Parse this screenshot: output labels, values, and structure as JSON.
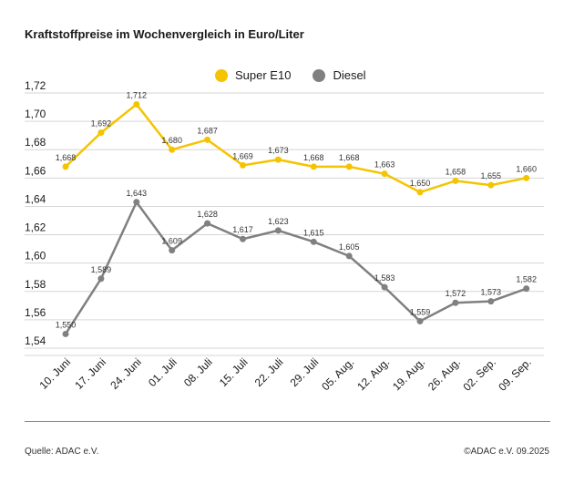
{
  "title": "Kraftstoffpreise im Wochenvergleich in Euro/Liter",
  "footer": {
    "source": "Quelle: ADAC e.V.",
    "copyright": "©ADAC e.V. 09.2025"
  },
  "colors": {
    "super_e10": "#f5c400",
    "diesel": "#808080",
    "grid": "#d6d6d6"
  },
  "chart_data": {
    "type": "line",
    "title": "Kraftstoffpreise im Wochenvergleich in Euro/Liter",
    "categories": [
      "10. Juni",
      "17. Juni",
      "24. Juni",
      "01. Juli",
      "08. Juli",
      "15. Juli",
      "22. Juli",
      "29. Juli",
      "05. Aug.",
      "12. Aug.",
      "19. Aug.",
      "26. Aug.",
      "02. Sep.",
      "09. Sep."
    ],
    "series": [
      {
        "name": "Super E10",
        "color": "#f5c400",
        "values": [
          1.668,
          1.692,
          1.712,
          1.68,
          1.687,
          1.669,
          1.673,
          1.668,
          1.668,
          1.663,
          1.65,
          1.658,
          1.655,
          1.66
        ],
        "labels": [
          "1,668",
          "1,692",
          "1,712",
          "1,680",
          "1,687",
          "1,669",
          "1,673",
          "1,668",
          "1,668",
          "1,663",
          "1,650",
          "1,658",
          "1,655",
          "1,660"
        ]
      },
      {
        "name": "Diesel",
        "color": "#808080",
        "values": [
          1.55,
          1.589,
          1.643,
          1.609,
          1.628,
          1.617,
          1.623,
          1.615,
          1.605,
          1.583,
          1.559,
          1.572,
          1.573,
          1.582
        ],
        "labels": [
          "1,550",
          "1,589",
          "1,643",
          "1,609",
          "1,628",
          "1,617",
          "1,623",
          "1,615",
          "1,605",
          "1,583",
          "1,559",
          "1,572",
          "1,573",
          "1,582"
        ]
      }
    ],
    "yticks": [
      1.54,
      1.56,
      1.58,
      1.6,
      1.62,
      1.64,
      1.66,
      1.68,
      1.7,
      1.72
    ],
    "ytick_labels": [
      "1,54",
      "1,56",
      "1,58",
      "1,60",
      "1,62",
      "1,64",
      "1,66",
      "1,68",
      "1,70",
      "1,72"
    ],
    "ylim": [
      1.54,
      1.72
    ],
    "grid": true,
    "legend_position": "top-center"
  }
}
